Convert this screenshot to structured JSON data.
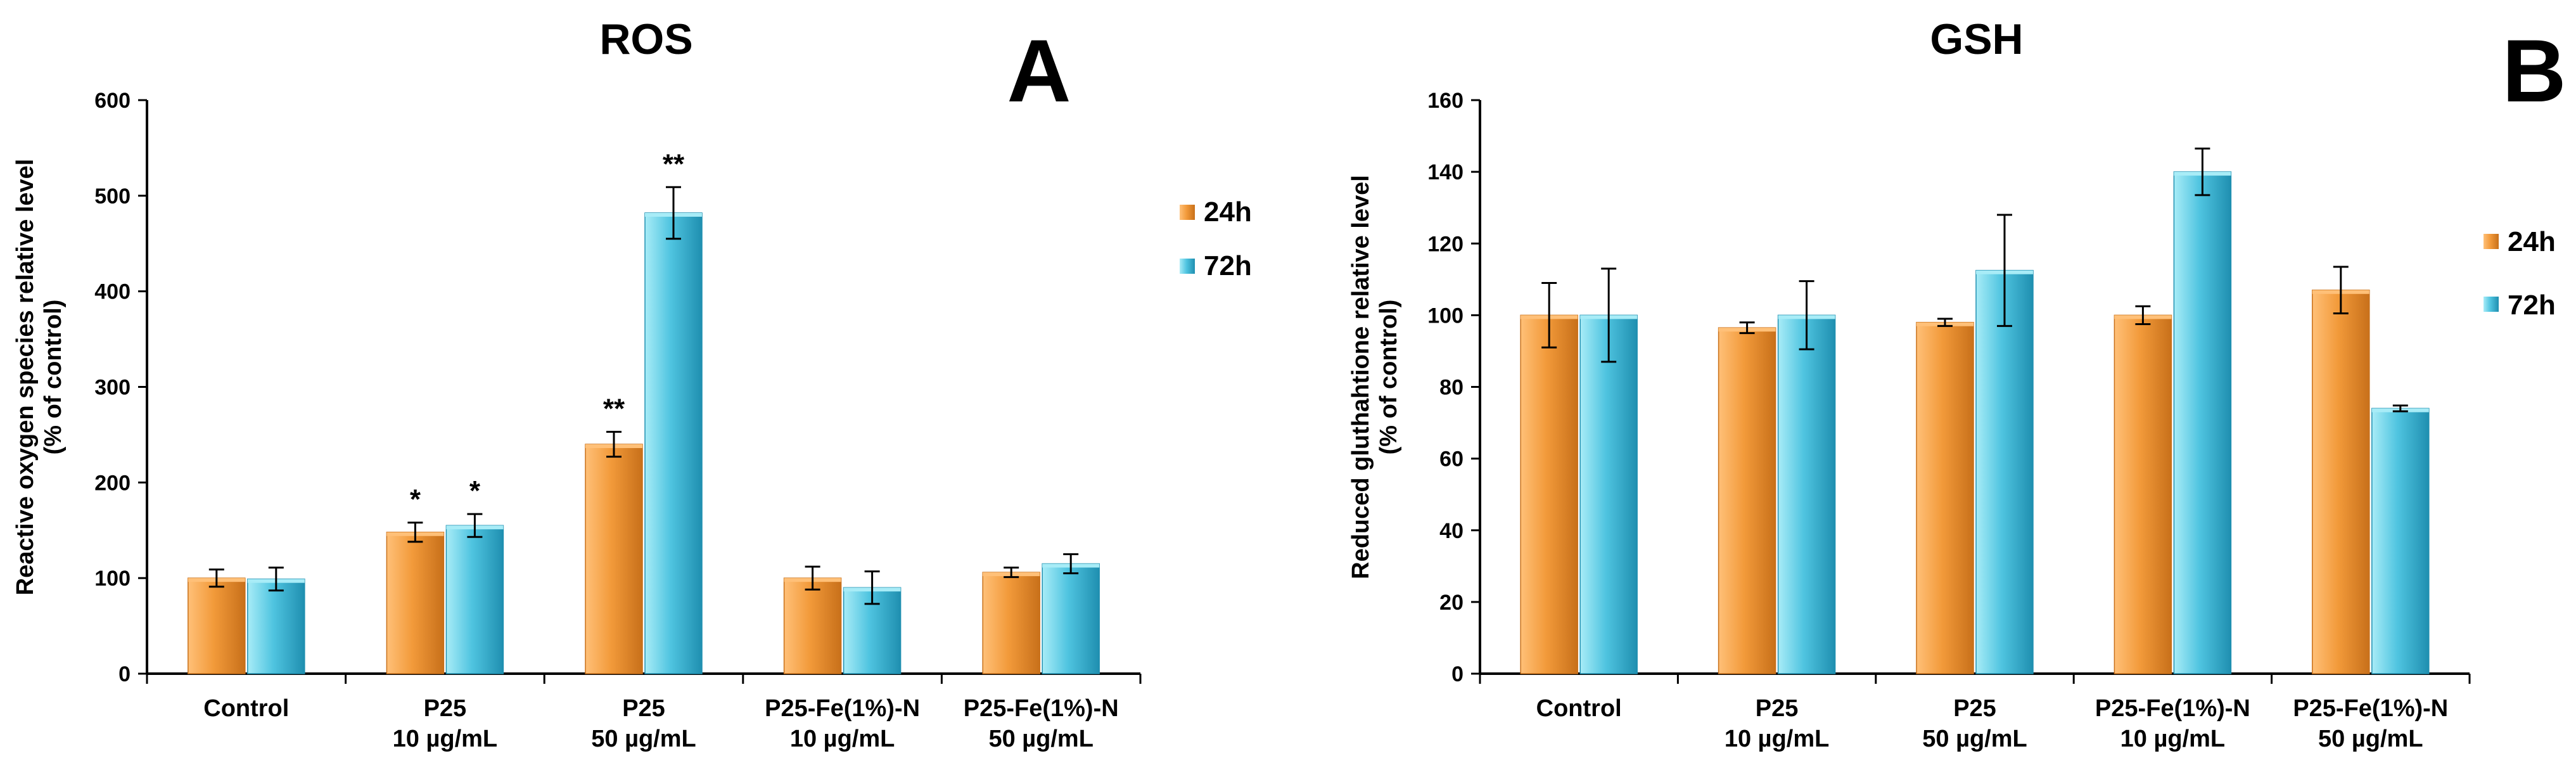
{
  "colors": {
    "orange_light": "#ffc078",
    "orange": "#f29a3a",
    "orange_dark": "#c8701a",
    "blue_light": "#a8ecf7",
    "blue": "#4fc4e0",
    "blue_dark": "#1f8fb0",
    "axis": "#000000",
    "error": "#000000"
  },
  "chart_data": [
    {
      "type": "bar",
      "title": "ROS",
      "panel_letter": "A",
      "ylabel": "Reactive oxygen species relative level",
      "ylabel2": "(% of control)",
      "xlabel": "",
      "ylim": [
        0,
        600
      ],
      "yticks": [
        0,
        100,
        200,
        300,
        400,
        500,
        600
      ],
      "categories": [
        [
          "Control"
        ],
        [
          "P25",
          "10 µg/mL"
        ],
        [
          "P25",
          "50 µg/mL"
        ],
        [
          "P25-Fe(1%)-N",
          "10 µg/mL"
        ],
        [
          "P25-Fe(1%)-N",
          "50 µg/mL"
        ]
      ],
      "series": [
        {
          "name": "24h",
          "values": [
            100,
            148,
            240,
            100,
            106
          ],
          "errors": [
            9,
            10,
            13,
            12,
            5
          ],
          "annotations": [
            "",
            "*",
            "**",
            "",
            ""
          ]
        },
        {
          "name": "72h",
          "values": [
            99,
            155,
            482,
            90,
            115
          ],
          "errors": [
            12,
            12,
            27,
            17,
            10
          ],
          "annotations": [
            "",
            "*",
            "**",
            "",
            ""
          ]
        }
      ],
      "legend": "right",
      "grid": false
    },
    {
      "type": "bar",
      "title": "GSH",
      "panel_letter": "B",
      "ylabel": "Reduced gluthahtione relative level",
      "ylabel2": "(% of control)",
      "xlabel": "",
      "ylim": [
        0,
        160
      ],
      "yticks": [
        0,
        20,
        40,
        60,
        80,
        100,
        120,
        140,
        160
      ],
      "categories": [
        [
          "Control"
        ],
        [
          "P25",
          "10 µg/mL"
        ],
        [
          "P25",
          "50 µg/mL"
        ],
        [
          "P25-Fe(1%)-N",
          "10 µg/mL"
        ],
        [
          "P25-Fe(1%)-N",
          "50 µg/mL"
        ]
      ],
      "series": [
        {
          "name": "24h",
          "values": [
            100,
            96.5,
            98,
            100,
            107
          ],
          "errors": [
            9,
            1.5,
            1,
            2.5,
            6.5
          ],
          "annotations": [
            "",
            "",
            "",
            "",
            ""
          ]
        },
        {
          "name": "72h",
          "values": [
            100,
            100,
            112.5,
            140,
            74
          ],
          "errors": [
            13,
            9.5,
            15.5,
            6.5,
            0.8
          ],
          "annotations": [
            "",
            "",
            "",
            "",
            ""
          ]
        }
      ],
      "legend": "right",
      "grid": false
    }
  ]
}
